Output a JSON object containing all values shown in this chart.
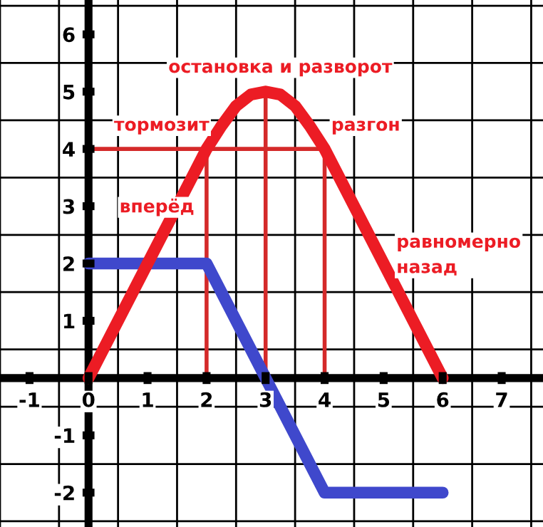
{
  "chart_data": {
    "type": "line",
    "xlim": [
      -1.5,
      7.7
    ],
    "ylim": [
      -2.6,
      6.6
    ],
    "xticks": [
      -1,
      0,
      1,
      2,
      3,
      4,
      5,
      6,
      7
    ],
    "yticks": [
      -2,
      -1,
      1,
      2,
      3,
      4,
      5,
      6
    ],
    "grid": true,
    "series": [
      {
        "color": "#ec1c24",
        "x": [
          0,
          2,
          2.25,
          2.5,
          2.75,
          3,
          3.25,
          3.5,
          3.75,
          4,
          6
        ],
        "values": [
          0,
          4,
          4.4,
          4.75,
          4.95,
          5,
          4.95,
          4.75,
          4.4,
          4,
          0
        ]
      },
      {
        "color": "#3f48cc",
        "x": [
          0,
          2,
          4,
          6
        ],
        "values": [
          2,
          2,
          -2,
          -2
        ]
      },
      {
        "color": "#d42a2a",
        "x": [
          0,
          4
        ],
        "values": [
          4,
          4
        ]
      },
      {
        "color": "#d42a2a",
        "x": [
          2,
          2
        ],
        "values": [
          0,
          4
        ]
      },
      {
        "color": "#d42a2a",
        "x": [
          3,
          3
        ],
        "values": [
          0,
          5
        ]
      },
      {
        "color": "#d42a2a",
        "x": [
          4,
          4
        ],
        "values": [
          0,
          4
        ]
      }
    ],
    "annotations": [
      "вперёд",
      "тормозит",
      "остановка и разворот",
      "разгон",
      "равномерно\nназад"
    ]
  }
}
